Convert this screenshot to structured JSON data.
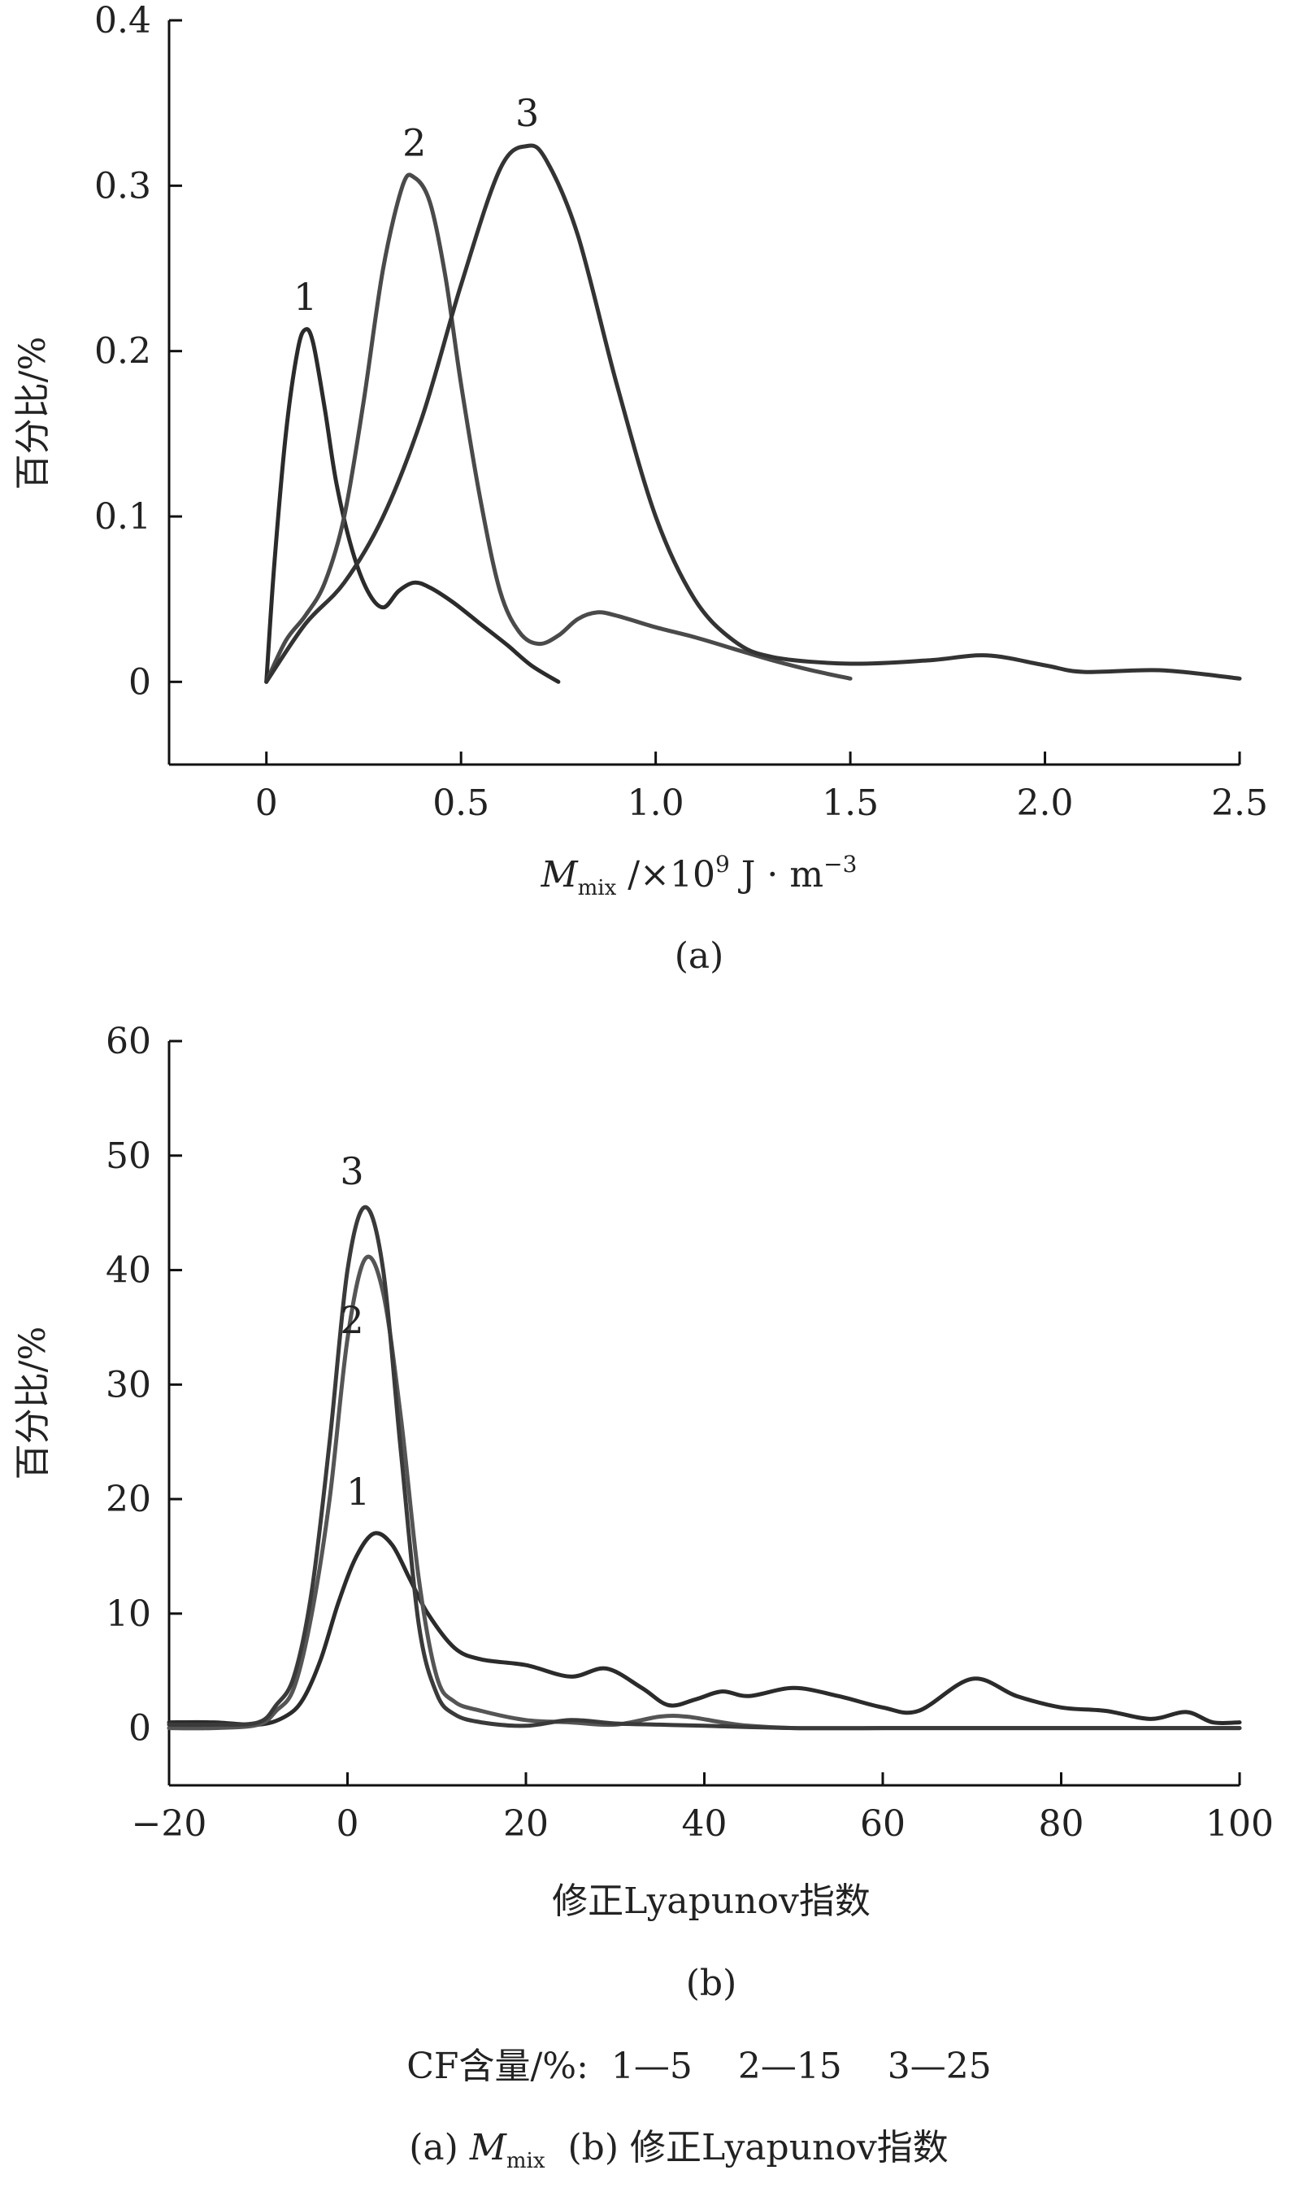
{
  "chart_data": [
    {
      "type": "line",
      "panel_caption": "(a)",
      "xlabel": "M_mix /×10^9 J·m^-3",
      "xlabel_parts": {
        "main": "M",
        "sub": "mix",
        "mid": " /×10",
        "sup1": "9",
        "unit": " J · m",
        "sup2": "−3"
      },
      "ylabel": "百分比/%",
      "xlim": [
        -0.25,
        2.5
      ],
      "ylim": [
        -0.05,
        0.4
      ],
      "xticks": [
        "0",
        "0.5",
        "1.0",
        "1.5",
        "2.0",
        "2.5"
      ],
      "xtick_values": [
        0,
        0.5,
        1.0,
        1.5,
        2.0,
        2.5
      ],
      "yticks": [
        "0",
        "0.1",
        "0.2",
        "0.3",
        "0.4"
      ],
      "ytick_values": [
        0,
        0.1,
        0.2,
        0.3,
        0.4
      ],
      "series": [
        {
          "name": "1",
          "color": "#2b2b2b",
          "x": [
            0,
            0.02,
            0.05,
            0.08,
            0.1,
            0.12,
            0.15,
            0.18,
            0.22,
            0.26,
            0.3,
            0.34,
            0.38,
            0.42,
            0.48,
            0.55,
            0.62,
            0.68,
            0.75
          ],
          "y": [
            0,
            0.07,
            0.15,
            0.2,
            0.213,
            0.205,
            0.165,
            0.12,
            0.08,
            0.055,
            0.045,
            0.055,
            0.06,
            0.057,
            0.048,
            0.035,
            0.022,
            0.01,
            0.0
          ]
        },
        {
          "name": "2",
          "color": "#4a4a4a",
          "x": [
            0,
            0.05,
            0.1,
            0.15,
            0.2,
            0.25,
            0.3,
            0.35,
            0.38,
            0.42,
            0.46,
            0.5,
            0.55,
            0.6,
            0.65,
            0.7,
            0.75,
            0.8,
            0.85,
            0.9,
            1.0,
            1.1,
            1.2,
            1.3,
            1.4,
            1.5
          ],
          "y": [
            0,
            0.025,
            0.04,
            0.06,
            0.1,
            0.17,
            0.25,
            0.3,
            0.305,
            0.29,
            0.245,
            0.18,
            0.11,
            0.055,
            0.03,
            0.023,
            0.028,
            0.038,
            0.042,
            0.04,
            0.033,
            0.027,
            0.02,
            0.013,
            0.007,
            0.002
          ]
        },
        {
          "name": "3",
          "color": "#333333",
          "x": [
            0,
            0.1,
            0.2,
            0.3,
            0.4,
            0.5,
            0.6,
            0.67,
            0.72,
            0.8,
            0.9,
            1.0,
            1.1,
            1.2,
            1.3,
            1.5,
            1.7,
            1.85,
            2.0,
            2.1,
            2.3,
            2.5
          ],
          "y": [
            0,
            0.035,
            0.06,
            0.1,
            0.16,
            0.24,
            0.31,
            0.324,
            0.315,
            0.27,
            0.18,
            0.1,
            0.05,
            0.025,
            0.015,
            0.011,
            0.013,
            0.016,
            0.01,
            0.006,
            0.007,
            0.002
          ]
        }
      ],
      "annotations": [
        {
          "text": "1",
          "x": 0.1,
          "y": 0.225
        },
        {
          "text": "2",
          "x": 0.38,
          "y": 0.318
        },
        {
          "text": "3",
          "x": 0.67,
          "y": 0.336
        }
      ]
    },
    {
      "type": "line",
      "panel_caption": "(b)",
      "xlabel": "修正Lyapunov指数",
      "ylabel": "百分比/%",
      "xlim": [
        -20,
        100
      ],
      "ylim": [
        -5,
        60
      ],
      "xticks": [
        "−20",
        "0",
        "20",
        "40",
        "60",
        "80",
        "100"
      ],
      "xtick_values": [
        -20,
        0,
        20,
        40,
        60,
        80,
        100
      ],
      "yticks": [
        "0",
        "10",
        "20",
        "30",
        "40",
        "50",
        "60"
      ],
      "ytick_values": [
        0,
        10,
        20,
        30,
        40,
        50,
        60
      ],
      "series": [
        {
          "name": "1",
          "color": "#2b2b2b",
          "x": [
            -20,
            -15,
            -10,
            -7,
            -5,
            -3,
            -1,
            1,
            3,
            5,
            7,
            9,
            12,
            15,
            20,
            25,
            29,
            33,
            36,
            39,
            42,
            45,
            50,
            55,
            60,
            64,
            70,
            75,
            80,
            85,
            90,
            94,
            97,
            100
          ],
          "y": [
            0.5,
            0.5,
            0.3,
            1,
            2.5,
            6,
            11,
            15,
            17,
            16,
            13,
            10,
            7,
            6,
            5.5,
            4.5,
            5.2,
            3.5,
            2,
            2.5,
            3.2,
            2.8,
            3.5,
            2.8,
            1.8,
            1.5,
            4.3,
            2.8,
            1.8,
            1.5,
            0.8,
            1.4,
            0.5,
            0.5
          ]
        },
        {
          "name": "2",
          "color": "#555555",
          "x": [
            -20,
            -15,
            -10,
            -8,
            -6,
            -4,
            -2,
            0,
            2,
            4,
            6,
            8,
            10,
            12,
            15,
            20,
            25,
            30,
            35,
            38,
            42,
            45,
            50,
            60,
            70,
            80,
            90,
            100
          ],
          "y": [
            0,
            0,
            0.3,
            1.5,
            3.5,
            10,
            20,
            34,
            41,
            38,
            27,
            13,
            4.5,
            2.3,
            1.5,
            0.7,
            0.5,
            0.3,
            1,
            1,
            0.5,
            0.2,
            0,
            0,
            0,
            0,
            0,
            0
          ]
        },
        {
          "name": "3",
          "color": "#3a3a3a",
          "x": [
            -20,
            -15,
            -10,
            -8,
            -6,
            -4,
            -2,
            0,
            2,
            4,
            6,
            8,
            10,
            12,
            15,
            20,
            25,
            30,
            35,
            40,
            50,
            60,
            70,
            80,
            90,
            100
          ],
          "y": [
            0.3,
            0.3,
            0.5,
            2,
            4.5,
            12,
            25,
            40,
            45.5,
            40,
            24,
            9,
            3,
            1.2,
            0.5,
            0.2,
            0.7,
            0.4,
            0.3,
            0.2,
            0,
            0,
            0,
            0,
            0,
            0
          ]
        }
      ],
      "annotations": [
        {
          "text": "3",
          "x": 0.5,
          "y": 47.5
        },
        {
          "text": "2",
          "x": 0.5,
          "y": 34.5
        },
        {
          "text": "1",
          "x": 1.2,
          "y": 19.5
        }
      ]
    }
  ],
  "legend_note": "CF含量/%:  1—5    2—15    3—25",
  "figure_caption": {
    "a_prefix": "(a) ",
    "a_main": "M",
    "a_sub": "mix",
    "b_text": "(b) 修正Lyapunov指数"
  }
}
